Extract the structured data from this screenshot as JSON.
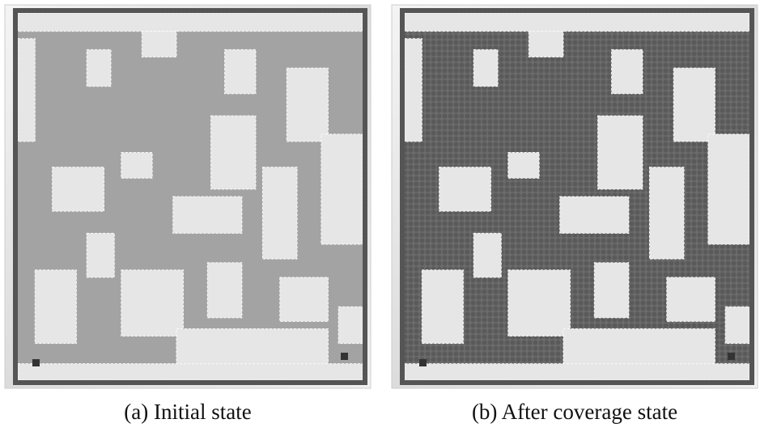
{
  "panels": [
    {
      "caption": "(a) Initial state"
    },
    {
      "caption": "(b) After coverage state"
    }
  ]
}
